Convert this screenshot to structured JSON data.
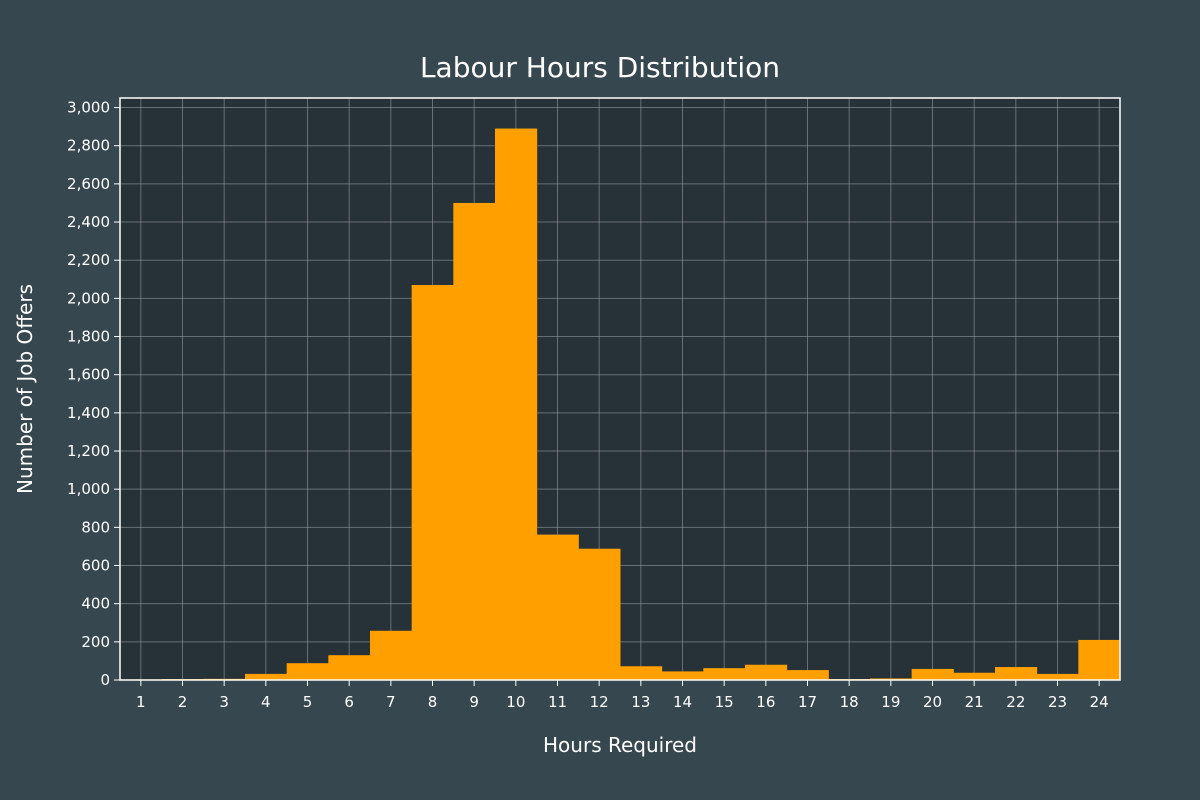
{
  "colors": {
    "page_background": "#37474f",
    "plot_background": "#263238",
    "bar_fill": "#ffa000",
    "grid": "#9aa3a8",
    "axis_line": "#ffffff",
    "text": "#ffffff"
  },
  "chart_data": {
    "type": "bar",
    "title": "Labour Hours Distribution",
    "xlabel": "Hours Required",
    "ylabel": "Number of Job Offers",
    "categories": [
      "1",
      "2",
      "3",
      "4",
      "5",
      "6",
      "7",
      "8",
      "9",
      "10",
      "11",
      "12",
      "13",
      "14",
      "15",
      "16",
      "17",
      "18",
      "19",
      "20",
      "21",
      "22",
      "23",
      "24"
    ],
    "values": [
      3,
      5,
      6,
      32,
      88,
      130,
      258,
      2070,
      2500,
      2890,
      762,
      688,
      72,
      45,
      62,
      80,
      52,
      5,
      8,
      58,
      38,
      68,
      32,
      210
    ],
    "ylim": [
      0,
      3050
    ],
    "yticks": [
      0,
      200,
      400,
      600,
      800,
      1000,
      1200,
      1400,
      1600,
      1800,
      2000,
      2200,
      2400,
      2600,
      2800,
      3000
    ],
    "ytick_labels": [
      "0",
      "200",
      "400",
      "600",
      "800",
      "1,000",
      "1,200",
      "1,400",
      "1,600",
      "1,800",
      "2,000",
      "2,200",
      "2,400",
      "2,600",
      "2,800",
      "3,000"
    ],
    "grid": true,
    "legend": "none"
  }
}
